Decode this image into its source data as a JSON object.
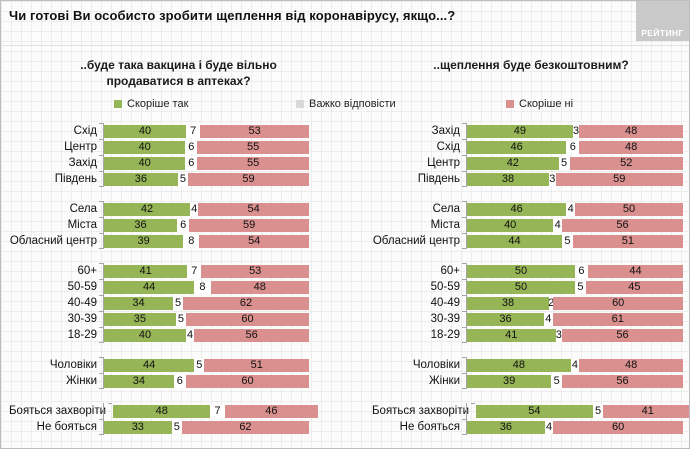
{
  "header": {
    "title": "Чи готові Ви особисто зробити щеплення від коронавірусу, якщо...?",
    "logo_text": "РЕЙТИНГ"
  },
  "legend": [
    {
      "label": "Скоріше так",
      "color": "#95b556"
    },
    {
      "label": "Важко відповісти",
      "color": "#d9d9d9"
    },
    {
      "label": "Скоріше ні",
      "color": "#d9908e"
    }
  ],
  "colors": {
    "segment_yes": "#95b556",
    "segment_hard": "#ffffff",
    "segment_no": "#d9908e",
    "axis_line": "#a6a6a6",
    "logo_bg": "#c9c9c9"
  },
  "chart_data": [
    {
      "type": "bar",
      "orientation": "horizontal",
      "stacked": true,
      "unit": "percent",
      "title": "..буде така вакцина і буде вільно продаватися в аптеках?",
      "series_names": [
        "Скоріше так",
        "Важко відповісти",
        "Скоріше ні"
      ],
      "groups": [
        {
          "rows": [
            {
              "label": "Схід",
              "values": [
                40,
                7,
                53
              ]
            },
            {
              "label": "Центр",
              "values": [
                40,
                6,
                55
              ]
            },
            {
              "label": "Захід",
              "values": [
                40,
                6,
                55
              ]
            },
            {
              "label": "Південь",
              "values": [
                36,
                5,
                59
              ]
            }
          ]
        },
        {
          "rows": [
            {
              "label": "Села",
              "values": [
                42,
                4,
                54
              ]
            },
            {
              "label": "Міста",
              "values": [
                36,
                6,
                59
              ]
            },
            {
              "label": "Обласний центр",
              "values": [
                39,
                8,
                54
              ]
            }
          ]
        },
        {
          "rows": [
            {
              "label": "60+",
              "values": [
                41,
                7,
                53
              ]
            },
            {
              "label": "50-59",
              "values": [
                44,
                8,
                48
              ]
            },
            {
              "label": "40-49",
              "values": [
                34,
                5,
                62
              ]
            },
            {
              "label": "30-39",
              "values": [
                35,
                5,
                60
              ]
            },
            {
              "label": "18-29",
              "values": [
                40,
                4,
                56
              ]
            }
          ]
        },
        {
          "rows": [
            {
              "label": "Чоловіки",
              "values": [
                44,
                5,
                51
              ]
            },
            {
              "label": "Жінки",
              "values": [
                34,
                6,
                60
              ]
            }
          ]
        },
        {
          "rows": [
            {
              "label": "Бояться захворіти",
              "values": [
                48,
                7,
                46
              ]
            },
            {
              "label": "Не бояться",
              "values": [
                33,
                5,
                62
              ]
            }
          ]
        }
      ]
    },
    {
      "type": "bar",
      "orientation": "horizontal",
      "stacked": true,
      "unit": "percent",
      "title": "..щеплення буде безкоштовним?",
      "series_names": [
        "Скоріше так",
        "Важко відповісти",
        "Скоріше ні"
      ],
      "groups": [
        {
          "rows": [
            {
              "label": "Захід",
              "values": [
                49,
                3,
                48
              ]
            },
            {
              "label": "Схід",
              "values": [
                46,
                6,
                48
              ]
            },
            {
              "label": "Центр",
              "values": [
                42,
                5,
                52
              ]
            },
            {
              "label": "Південь",
              "values": [
                38,
                3,
                59
              ]
            }
          ]
        },
        {
          "rows": [
            {
              "label": "Села",
              "values": [
                46,
                4,
                50
              ]
            },
            {
              "label": "Міста",
              "values": [
                40,
                4,
                56
              ]
            },
            {
              "label": "Обласний центр",
              "values": [
                44,
                5,
                51
              ]
            }
          ]
        },
        {
          "rows": [
            {
              "label": "60+",
              "values": [
                50,
                6,
                44
              ]
            },
            {
              "label": "50-59",
              "values": [
                50,
                5,
                45
              ]
            },
            {
              "label": "40-49",
              "values": [
                38,
                2,
                60
              ]
            },
            {
              "label": "30-39",
              "values": [
                36,
                4,
                61
              ]
            },
            {
              "label": "18-29",
              "values": [
                41,
                3,
                56
              ]
            }
          ]
        },
        {
          "rows": [
            {
              "label": "Чоловіки",
              "values": [
                48,
                4,
                48
              ]
            },
            {
              "label": "Жінки",
              "values": [
                39,
                5,
                56
              ]
            }
          ]
        },
        {
          "rows": [
            {
              "label": "Бояться захворіти",
              "values": [
                54,
                5,
                41
              ]
            },
            {
              "label": "Не бояться",
              "values": [
                36,
                4,
                60
              ]
            }
          ]
        }
      ]
    }
  ]
}
